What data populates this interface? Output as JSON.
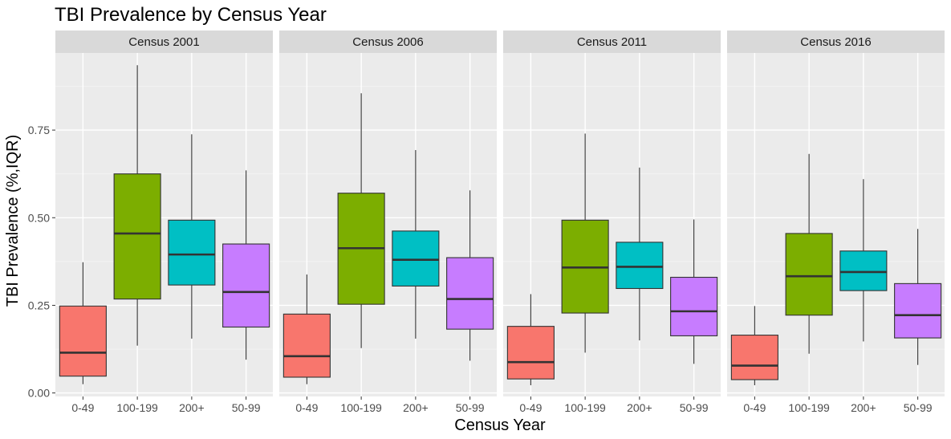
{
  "chart_data": {
    "type": "box",
    "title": "TBI Prevalence by Census Year",
    "xlabel": "Census Year",
    "ylabel": "TBI Prevalence (%,IQR)",
    "ylim": [
      -0.01,
      0.97
    ],
    "yticks": [
      0.0,
      0.25,
      0.5,
      0.75
    ],
    "ytick_labels": [
      "0.00",
      "0.25",
      "0.50",
      "0.75"
    ],
    "grid": true,
    "legend": "none",
    "categories": [
      "0-49",
      "100-199",
      "200+",
      "50-99"
    ],
    "category_colors": [
      "#F8766D",
      "#7CAE00",
      "#00BFC4",
      "#C77CFF"
    ],
    "panels": [
      {
        "label": "Census 2001",
        "boxes": [
          {
            "category": "0-49",
            "whisker_low": 0.025,
            "q1": 0.048,
            "median": 0.115,
            "q3": 0.248,
            "whisker_high": 0.373
          },
          {
            "category": "100-199",
            "whisker_low": 0.135,
            "q1": 0.268,
            "median": 0.455,
            "q3": 0.625,
            "whisker_high": 0.935
          },
          {
            "category": "200+",
            "whisker_low": 0.155,
            "q1": 0.308,
            "median": 0.395,
            "q3": 0.493,
            "whisker_high": 0.738
          },
          {
            "category": "50-99",
            "whisker_low": 0.095,
            "q1": 0.188,
            "median": 0.288,
            "q3": 0.425,
            "whisker_high": 0.635
          }
        ]
      },
      {
        "label": "Census 2006",
        "boxes": [
          {
            "category": "0-49",
            "whisker_low": 0.025,
            "q1": 0.045,
            "median": 0.105,
            "q3": 0.225,
            "whisker_high": 0.338
          },
          {
            "category": "100-199",
            "whisker_low": 0.128,
            "q1": 0.253,
            "median": 0.413,
            "q3": 0.57,
            "whisker_high": 0.855
          },
          {
            "category": "200+",
            "whisker_low": 0.155,
            "q1": 0.305,
            "median": 0.38,
            "q3": 0.462,
            "whisker_high": 0.693
          },
          {
            "category": "50-99",
            "whisker_low": 0.092,
            "q1": 0.182,
            "median": 0.268,
            "q3": 0.386,
            "whisker_high": 0.578
          }
        ]
      },
      {
        "label": "Census 2011",
        "boxes": [
          {
            "category": "0-49",
            "whisker_low": 0.022,
            "q1": 0.04,
            "median": 0.088,
            "q3": 0.19,
            "whisker_high": 0.282
          },
          {
            "category": "100-199",
            "whisker_low": 0.115,
            "q1": 0.228,
            "median": 0.358,
            "q3": 0.493,
            "whisker_high": 0.74
          },
          {
            "category": "200+",
            "whisker_low": 0.15,
            "q1": 0.298,
            "median": 0.36,
            "q3": 0.43,
            "whisker_high": 0.643
          },
          {
            "category": "50-99",
            "whisker_low": 0.083,
            "q1": 0.163,
            "median": 0.233,
            "q3": 0.33,
            "whisker_high": 0.495
          }
        ]
      },
      {
        "label": "Census 2016",
        "boxes": [
          {
            "category": "0-49",
            "whisker_low": 0.022,
            "q1": 0.038,
            "median": 0.078,
            "q3": 0.165,
            "whisker_high": 0.248
          },
          {
            "category": "100-199",
            "whisker_low": 0.112,
            "q1": 0.222,
            "median": 0.333,
            "q3": 0.455,
            "whisker_high": 0.682
          },
          {
            "category": "200+",
            "whisker_low": 0.147,
            "q1": 0.292,
            "median": 0.345,
            "q3": 0.405,
            "whisker_high": 0.61
          },
          {
            "category": "50-99",
            "whisker_low": 0.08,
            "q1": 0.157,
            "median": 0.222,
            "q3": 0.312,
            "whisker_high": 0.468
          }
        ]
      }
    ]
  }
}
